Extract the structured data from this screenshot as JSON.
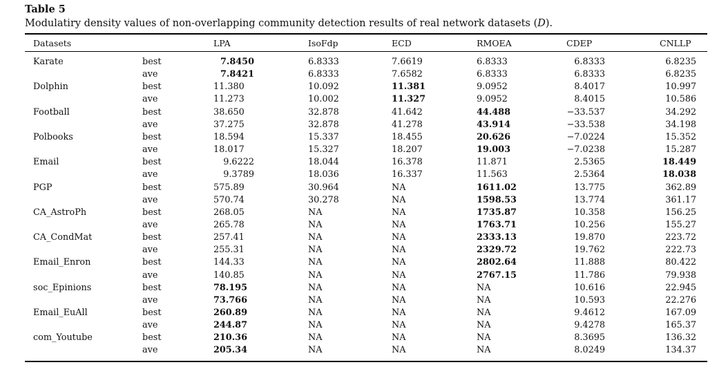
{
  "table": {
    "label": "Table 5",
    "caption_pre": "Modulatiry density values of non-overlapping community detection results of real network datasets (",
    "caption_var": "D",
    "caption_post": ").",
    "columns": [
      "Datasets",
      "",
      "LPA",
      "IsoFdp",
      "ECD",
      "RMOEA",
      "CDEP",
      "CNLLP"
    ],
    "rows": [
      {
        "dataset": "Karate",
        "stat": "best",
        "values": [
          "7.8450",
          "6.8333",
          "7.6619",
          "6.8333",
          "6.8333",
          "6.8235"
        ],
        "bold": [
          0
        ]
      },
      {
        "dataset": "",
        "stat": "ave",
        "values": [
          "7.8421",
          "6.8333",
          "7.6582",
          "6.8333",
          "6.8333",
          "6.8235"
        ],
        "bold": [
          0
        ]
      },
      {
        "dataset": "Dolphin",
        "stat": "best",
        "values": [
          "11.380",
          "10.092",
          "11.381",
          "9.0952",
          "8.4017",
          "10.997"
        ],
        "bold": [
          2
        ]
      },
      {
        "dataset": "",
        "stat": "ave",
        "values": [
          "11.273",
          "10.002",
          "11.327",
          "9.0952",
          "8.4015",
          "10.586"
        ],
        "bold": [
          2
        ]
      },
      {
        "dataset": "Football",
        "stat": "best",
        "values": [
          "38.650",
          "32.878",
          "41.642",
          "44.488",
          "−33.537",
          "34.292"
        ],
        "bold": [
          3
        ]
      },
      {
        "dataset": "",
        "stat": "ave",
        "values": [
          "37.275",
          "32.878",
          "41.278",
          "43.914",
          "−33.538",
          "34.198"
        ],
        "bold": [
          3
        ]
      },
      {
        "dataset": "Polbooks",
        "stat": "best",
        "values": [
          "18.594",
          "15.337",
          "18.455",
          "20.626",
          "−7.0224",
          "15.352"
        ],
        "bold": [
          3
        ]
      },
      {
        "dataset": "",
        "stat": "ave",
        "values": [
          "18.017",
          "15.327",
          "18.207",
          "19.003",
          "−7.0238",
          "15.287"
        ],
        "bold": [
          3
        ]
      },
      {
        "dataset": "Email",
        "stat": "best",
        "values": [
          "9.6222",
          "18.044",
          "16.378",
          "11.871",
          "2.5365",
          "18.449"
        ],
        "bold": [
          5
        ]
      },
      {
        "dataset": "",
        "stat": "ave",
        "values": [
          "9.3789",
          "18.036",
          "16.337",
          "11.563",
          "2.5364",
          "18.038"
        ],
        "bold": [
          5
        ]
      },
      {
        "dataset": "PGP",
        "stat": "best",
        "values": [
          "575.89",
          "30.964",
          "NA",
          "1611.02",
          "13.775",
          "362.89"
        ],
        "bold": [
          3
        ]
      },
      {
        "dataset": "",
        "stat": "ave",
        "values": [
          "570.74",
          "30.278",
          "NA",
          "1598.53",
          "13.774",
          "361.17"
        ],
        "bold": [
          3
        ]
      },
      {
        "dataset": "CA_AstroPh",
        "stat": "best",
        "values": [
          "268.05",
          "NA",
          "NA",
          "1735.87",
          "10.358",
          "156.25"
        ],
        "bold": [
          3
        ]
      },
      {
        "dataset": "",
        "stat": "ave",
        "values": [
          "265.78",
          "NA",
          "NA",
          "1763.71",
          "10.256",
          "155.27"
        ],
        "bold": [
          3
        ]
      },
      {
        "dataset": "CA_CondMat",
        "stat": "best",
        "values": [
          "257.41",
          "NA",
          "NA",
          "2333.13",
          "19.870",
          "223.72"
        ],
        "bold": [
          3
        ]
      },
      {
        "dataset": "",
        "stat": "ave",
        "values": [
          "255.31",
          "NA",
          "NA",
          "2329.72",
          "19.762",
          "222.73"
        ],
        "bold": [
          3
        ]
      },
      {
        "dataset": "Email_Enron",
        "stat": "best",
        "values": [
          "144.33",
          "NA",
          "NA",
          "2802.64",
          "11.888",
          "80.422"
        ],
        "bold": [
          3
        ]
      },
      {
        "dataset": "",
        "stat": "ave",
        "values": [
          "140.85",
          "NA",
          "NA",
          "2767.15",
          "11.786",
          "79.938"
        ],
        "bold": [
          3
        ]
      },
      {
        "dataset": "soc_Epinions",
        "stat": "best",
        "values": [
          "78.195",
          "NA",
          "NA",
          "NA",
          "10.616",
          "22.945"
        ],
        "bold": [
          0
        ]
      },
      {
        "dataset": "",
        "stat": "ave",
        "values": [
          "73.766",
          "NA",
          "NA",
          "NA",
          "10.593",
          "22.276"
        ],
        "bold": [
          0
        ]
      },
      {
        "dataset": "Email_EuAll",
        "stat": "best",
        "values": [
          "260.89",
          "NA",
          "NA",
          "NA",
          "9.4612",
          "167.09"
        ],
        "bold": [
          0
        ]
      },
      {
        "dataset": "",
        "stat": "ave",
        "values": [
          "244.87",
          "NA",
          "NA",
          "NA",
          "9.4278",
          "165.37"
        ],
        "bold": [
          0
        ]
      },
      {
        "dataset": "com_Youtube",
        "stat": "best",
        "values": [
          "210.36",
          "NA",
          "NA",
          "NA",
          "8.3695",
          "136.32"
        ],
        "bold": [
          0
        ]
      },
      {
        "dataset": "",
        "stat": "ave",
        "values": [
          "205.34",
          "NA",
          "NA",
          "NA",
          "8.0249",
          "134.37"
        ],
        "bold": [
          0
        ]
      }
    ]
  }
}
